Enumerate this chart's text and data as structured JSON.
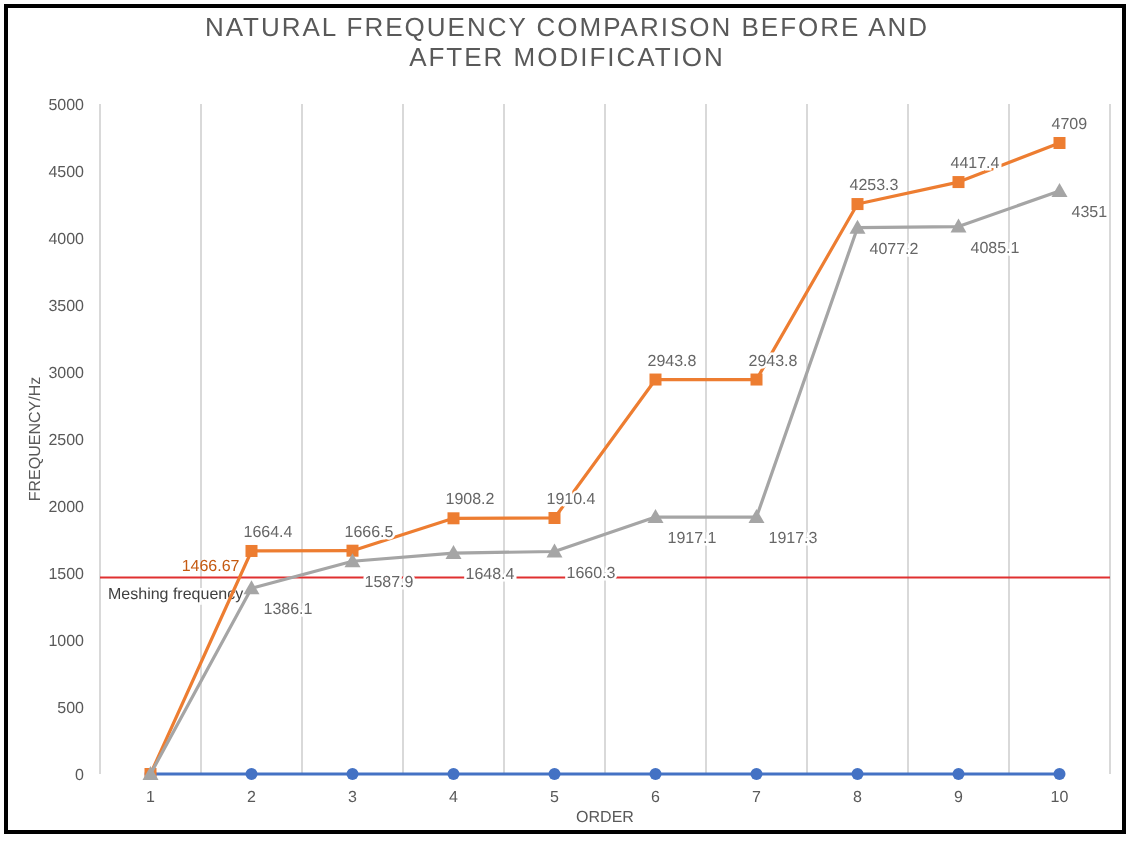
{
  "chart_data": {
    "type": "line",
    "title": "NATURAL FREQUENCY COMPARISON BEFORE AND AFTER MODIFICATION",
    "xlabel": "ORDER",
    "ylabel": "FREQUENCY/Hz",
    "categories": [
      "1",
      "2",
      "3",
      "4",
      "5",
      "6",
      "7",
      "8",
      "9",
      "10"
    ],
    "ylim": [
      0,
      5000
    ],
    "yticks": [
      0,
      500,
      1000,
      1500,
      2000,
      2500,
      3000,
      3500,
      4000,
      4500,
      5000
    ],
    "grid": "x",
    "series": [
      {
        "color": "#4472c4",
        "marker": "circle",
        "values": [
          0,
          0,
          0,
          0,
          0,
          0,
          0,
          0,
          0,
          0
        ]
      },
      {
        "color": "#ed7d31",
        "marker": "square",
        "values": [
          0,
          1664.4,
          1666.5,
          1908.2,
          1910.4,
          2943.8,
          2943.8,
          4253.3,
          4417.4,
          4709
        ],
        "value_labels": [
          null,
          "1664.4",
          "1666.5",
          "1908.2",
          "1910.4",
          "2943.8",
          "2943.8",
          "4253.3",
          "4417.4",
          "4709"
        ]
      },
      {
        "color": "#a5a5a5",
        "marker": "triangle",
        "values": [
          0,
          1386.1,
          1587.9,
          1648.4,
          1660.3,
          1917.1,
          1917.3,
          4077.2,
          4085.1,
          4351
        ],
        "value_labels": [
          null,
          "1386.1",
          "1587.9",
          "1648.4",
          "1660.3",
          "1917.1",
          "1917.3",
          "4077.2",
          "4085.1",
          "4351"
        ]
      }
    ],
    "ref_lines": [
      {
        "axis": "y",
        "value": 1466.67,
        "label": "Meshing frequency",
        "color": "#e03030"
      }
    ],
    "annotations": [
      {
        "text": "1466.67",
        "x": "2",
        "y": 1466.67
      }
    ]
  }
}
